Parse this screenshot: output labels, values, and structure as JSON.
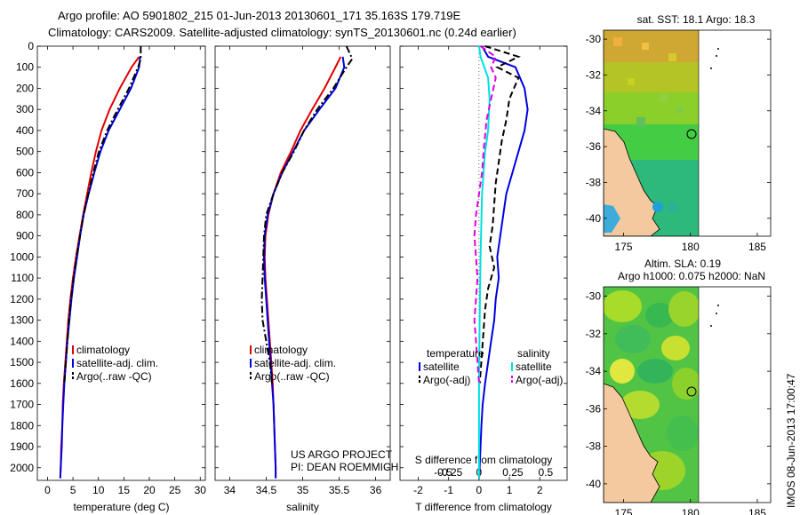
{
  "header": {
    "line1": "Argo profile: AO 5901802_215 01-Jun-2013 20130601_171 35.163S 179.719E",
    "line2": "Climatology: CARS2009. Satellite-adjusted climatology: synTS_20130601.nc (0.24d earlier)"
  },
  "side_label": "IMOS 08-Jun-2013 17:00:47",
  "project_note": {
    "line1": "US ARGO PROJECT",
    "line2": "PI: DEAN ROEMMICH"
  },
  "colors": {
    "climatology": "#e00000",
    "satellite": "#0000e0",
    "argo": "#000000",
    "salinity_sat": "#00e0e0",
    "salinity_argo": "#e000e0"
  },
  "chart_data": [
    {
      "type": "line",
      "id": "temperature",
      "xlabel": "temperature (deg C)",
      "xlim": [
        -2,
        31
      ],
      "ylim": [
        2060,
        0
      ],
      "xticks": [
        0,
        5,
        10,
        15,
        20,
        25,
        30
      ],
      "yticks": [
        0,
        100,
        200,
        300,
        400,
        500,
        600,
        700,
        800,
        900,
        1000,
        1100,
        1200,
        1300,
        1400,
        1500,
        1600,
        1700,
        1800,
        1900,
        2000
      ],
      "legend": [
        "climatology",
        "satellite-adj. clim.",
        "Argo(..raw -QC)"
      ],
      "series": [
        {
          "name": "climatology",
          "style": "solid",
          "color": "#e00000",
          "points": [
            [
              18,
              50
            ],
            [
              16.5,
              100
            ],
            [
              14.2,
              200
            ],
            [
              12.2,
              300
            ],
            [
              10.6,
              400
            ],
            [
              9.5,
              500
            ],
            [
              8.6,
              600
            ],
            [
              7.8,
              700
            ],
            [
              7.0,
              800
            ],
            [
              6.3,
              900
            ],
            [
              5.6,
              1000
            ],
            [
              5.0,
              1100
            ],
            [
              4.5,
              1200
            ],
            [
              4.1,
              1300
            ],
            [
              3.8,
              1400
            ],
            [
              3.5,
              1500
            ],
            [
              3.2,
              1600
            ],
            [
              3.0,
              1700
            ],
            [
              2.9,
              1800
            ],
            [
              2.7,
              1900
            ],
            [
              2.6,
              2000
            ],
            [
              2.5,
              2050
            ]
          ]
        },
        {
          "name": "satellite-adj. clim.",
          "style": "solid",
          "color": "#0000e0",
          "points": [
            [
              18.2,
              50
            ],
            [
              18.0,
              100
            ],
            [
              16.4,
              200
            ],
            [
              14.2,
              300
            ],
            [
              12.0,
              400
            ],
            [
              10.4,
              500
            ],
            [
              9.2,
              600
            ],
            [
              8.1,
              700
            ],
            [
              7.1,
              800
            ],
            [
              6.4,
              900
            ],
            [
              5.8,
              1000
            ],
            [
              5.2,
              1100
            ],
            [
              4.7,
              1200
            ],
            [
              4.3,
              1300
            ],
            [
              3.9,
              1400
            ],
            [
              3.6,
              1500
            ],
            [
              3.3,
              1600
            ],
            [
              3.1,
              1700
            ],
            [
              2.9,
              1800
            ],
            [
              2.8,
              1900
            ],
            [
              2.6,
              2000
            ],
            [
              2.5,
              2050
            ]
          ]
        },
        {
          "name": "Argo(..raw -QC)",
          "style": "dashdot",
          "color": "#000000",
          "points": [
            [
              18.3,
              0
            ],
            [
              18.3,
              60
            ],
            [
              17.8,
              100
            ],
            [
              16.0,
              200
            ],
            [
              13.8,
              300
            ],
            [
              11.7,
              400
            ],
            [
              10.1,
              500
            ],
            [
              9.0,
              600
            ],
            [
              8.0,
              700
            ],
            [
              7.1,
              800
            ],
            [
              6.4,
              900
            ],
            [
              5.7,
              1000
            ],
            [
              5.1,
              1100
            ],
            [
              4.6,
              1200
            ],
            [
              4.2,
              1300
            ],
            [
              3.9,
              1400
            ],
            [
              3.6,
              1500
            ],
            [
              3.3,
              1600
            ]
          ]
        }
      ]
    },
    {
      "type": "line",
      "id": "salinity",
      "xlabel": "salinity",
      "xlim": [
        33.8,
        36.2
      ],
      "ylim": [
        2060,
        0
      ],
      "xticks": [
        34,
        34.5,
        35,
        35.5,
        36
      ],
      "legend": [
        "climatology",
        "satellite-adj. clim.",
        "Argo(..raw -QC)"
      ],
      "series": [
        {
          "name": "climatology",
          "style": "solid",
          "color": "#e00000",
          "points": [
            [
              35.52,
              50
            ],
            [
              35.45,
              100
            ],
            [
              35.3,
              200
            ],
            [
              35.13,
              300
            ],
            [
              34.97,
              400
            ],
            [
              34.84,
              500
            ],
            [
              34.7,
              600
            ],
            [
              34.6,
              700
            ],
            [
              34.53,
              800
            ],
            [
              34.49,
              900
            ],
            [
              34.48,
              1000
            ],
            [
              34.49,
              1100
            ],
            [
              34.51,
              1200
            ],
            [
              34.53,
              1300
            ],
            [
              34.55,
              1400
            ],
            [
              34.57,
              1500
            ],
            [
              34.59,
              1600
            ],
            [
              34.6,
              1700
            ],
            [
              34.61,
              1800
            ],
            [
              34.62,
              1900
            ],
            [
              34.63,
              2000
            ],
            [
              34.63,
              2050
            ]
          ]
        },
        {
          "name": "satellite-adj. clim.",
          "style": "solid",
          "color": "#0000e0",
          "points": [
            [
              35.55,
              50
            ],
            [
              35.57,
              100
            ],
            [
              35.45,
              200
            ],
            [
              35.23,
              300
            ],
            [
              35.02,
              400
            ],
            [
              34.87,
              500
            ],
            [
              34.72,
              600
            ],
            [
              34.6,
              700
            ],
            [
              34.52,
              800
            ],
            [
              34.48,
              900
            ],
            [
              34.47,
              1000
            ],
            [
              34.48,
              1100
            ],
            [
              34.5,
              1200
            ],
            [
              34.52,
              1300
            ],
            [
              34.54,
              1400
            ],
            [
              34.56,
              1500
            ],
            [
              34.58,
              1600
            ],
            [
              34.6,
              1700
            ],
            [
              34.61,
              1800
            ],
            [
              34.62,
              1900
            ],
            [
              34.63,
              2000
            ],
            [
              34.63,
              2050
            ]
          ]
        },
        {
          "name": "Argo(..raw -QC)",
          "style": "dashdot",
          "color": "#000000",
          "points": [
            [
              35.6,
              0
            ],
            [
              35.68,
              60
            ],
            [
              35.6,
              100
            ],
            [
              35.42,
              200
            ],
            [
              35.2,
              300
            ],
            [
              35.02,
              400
            ],
            [
              34.88,
              500
            ],
            [
              34.72,
              600
            ],
            [
              34.6,
              700
            ],
            [
              34.5,
              800
            ],
            [
              34.47,
              900
            ],
            [
              34.46,
              1000
            ],
            [
              34.45,
              1100
            ],
            [
              34.44,
              1200
            ],
            [
              34.45,
              1300
            ],
            [
              34.5,
              1400
            ],
            [
              34.55,
              1500
            ],
            [
              34.58,
              1600
            ]
          ]
        }
      ]
    },
    {
      "type": "line",
      "id": "differences",
      "xlabel": "T difference from climatology",
      "xlabel2": "S difference from climatology",
      "xlim": [
        -2.6,
        2.9
      ],
      "ylim": [
        2060,
        0
      ],
      "xticks": [
        -2,
        -1,
        0,
        1,
        2
      ],
      "xticks2": [
        "-0.5",
        "-0.25",
        "0",
        "0.25",
        "0.5"
      ],
      "legend_titles": [
        "temperature",
        "salinity"
      ],
      "legend": [
        "satellite",
        "Argo(-adj)",
        "satellite",
        "Argo(-adj)"
      ],
      "series": [
        {
          "name": "temperature satellite",
          "style": "solid",
          "color": "#0000e0",
          "points": [
            [
              0.1,
              0
            ],
            [
              0.3,
              50
            ],
            [
              1.2,
              100
            ],
            [
              1.5,
              200
            ],
            [
              1.6,
              300
            ],
            [
              1.5,
              400
            ],
            [
              1.3,
              500
            ],
            [
              1.1,
              600
            ],
            [
              0.9,
              700
            ],
            [
              0.8,
              800
            ],
            [
              0.7,
              900
            ],
            [
              0.6,
              1000
            ],
            [
              0.65,
              1100
            ],
            [
              0.55,
              1200
            ],
            [
              0.5,
              1300
            ],
            [
              0.4,
              1400
            ],
            [
              0.3,
              1500
            ],
            [
              0.2,
              1600
            ],
            [
              0.12,
              1700
            ],
            [
              0.08,
              1800
            ],
            [
              0.05,
              1900
            ],
            [
              0.02,
              2000
            ],
            [
              0,
              2050
            ]
          ]
        },
        {
          "name": "temperature Argo(-adj)",
          "style": "dashed",
          "color": "#000000",
          "points": [
            [
              0.2,
              0
            ],
            [
              1.3,
              50
            ],
            [
              0.6,
              100
            ],
            [
              1.3,
              150
            ],
            [
              1.0,
              250
            ],
            [
              0.9,
              350
            ],
            [
              0.75,
              450
            ],
            [
              0.65,
              550
            ],
            [
              0.55,
              650
            ],
            [
              0.5,
              750
            ],
            [
              0.45,
              850
            ],
            [
              0.35,
              950
            ],
            [
              0.5,
              1050
            ],
            [
              0.3,
              1150
            ],
            [
              0.2,
              1250
            ],
            [
              0.15,
              1350
            ],
            [
              0.1,
              1450
            ],
            [
              0.05,
              1550
            ],
            [
              0.02,
              1600
            ]
          ]
        },
        {
          "name": "salinity satellite",
          "style": "solid",
          "color": "#00e0e0",
          "points": [
            [
              0,
              0
            ],
            [
              0.05,
              50
            ],
            [
              0.3,
              150
            ],
            [
              0.35,
              250
            ],
            [
              0.3,
              400
            ],
            [
              0.2,
              500
            ],
            [
              0.1,
              700
            ],
            [
              0.05,
              1000
            ],
            [
              0.02,
              1300
            ],
            [
              0,
              1600
            ],
            [
              0,
              2050
            ]
          ]
        },
        {
          "name": "salinity Argo(-adj)",
          "style": "dashed",
          "color": "#e000e0",
          "points": [
            [
              0.05,
              0
            ],
            [
              0.55,
              50
            ],
            [
              0.4,
              100
            ],
            [
              0.55,
              150
            ],
            [
              0.4,
              250
            ],
            [
              0.25,
              350
            ],
            [
              0.15,
              500
            ],
            [
              0.1,
              600
            ],
            [
              0.0,
              700
            ],
            [
              -0.1,
              800
            ],
            [
              -0.15,
              900
            ],
            [
              -0.1,
              1000
            ],
            [
              -0.05,
              1100
            ],
            [
              -0.1,
              1200
            ],
            [
              -0.15,
              1300
            ],
            [
              -0.1,
              1400
            ],
            [
              -0.05,
              1500
            ],
            [
              0,
              1600
            ]
          ]
        }
      ]
    },
    {
      "type": "heatmap",
      "id": "sst_map",
      "title": "sat. SST: 18.1  Argo: 18.3",
      "xlim": [
        173.5,
        186
      ],
      "ylim": [
        -41,
        -29.5
      ],
      "xticks": [
        175,
        180,
        185
      ],
      "yticks": [
        -30,
        -32,
        -34,
        -36,
        -38,
        -40
      ],
      "argo_position": [
        179.72,
        -35.16
      ]
    },
    {
      "type": "heatmap",
      "id": "sla_map",
      "title": "Altim. SLA: 0.19",
      "subtitle": "Argo h1000: 0.075 h2000: NaN",
      "xlim": [
        173.5,
        186
      ],
      "ylim": [
        -41,
        -29.5
      ],
      "xticks": [
        175,
        180,
        185
      ],
      "yticks": [
        -30,
        -32,
        -34,
        -36,
        -38,
        -40
      ],
      "argo_position": [
        179.72,
        -35.16
      ]
    }
  ]
}
